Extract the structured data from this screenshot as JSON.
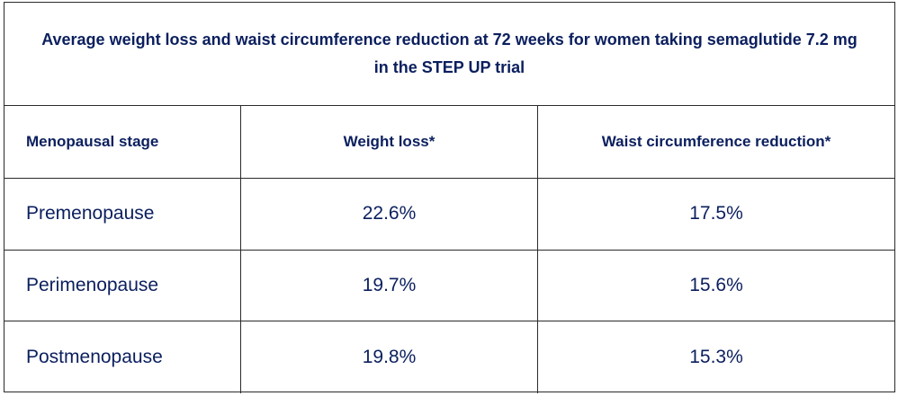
{
  "chart_data": {
    "type": "table",
    "title": "Average weight loss and waist circumference reduction at 72 weeks for women taking semaglutide 7.2 mg in the STEP UP trial",
    "columns": [
      "Menopausal stage",
      "Weight loss*",
      "Waist circumference reduction*"
    ],
    "rows": [
      [
        "Premenopause",
        "22.6%",
        "17.5%"
      ],
      [
        "Perimenopause",
        "19.7%",
        "15.6%"
      ],
      [
        "Postmenopause",
        "19.8%",
        "15.3%"
      ]
    ]
  },
  "colors": {
    "text": "#0b1f5e",
    "border": "#2a2a2a",
    "background": "#ffffff"
  }
}
